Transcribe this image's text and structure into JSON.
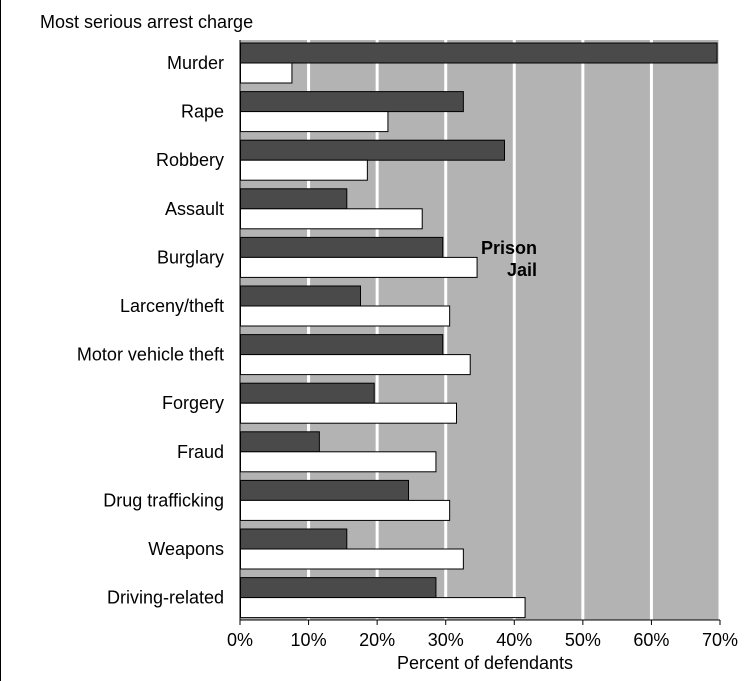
{
  "chart_data": {
    "type": "bar",
    "orientation": "horizontal",
    "title": "Most serious arrest charge",
    "xlabel": "Percent of defendants",
    "ylabel": "",
    "xlim": [
      0,
      70
    ],
    "x_ticks": [
      "0%",
      "10%",
      "20%",
      "30%",
      "40%",
      "50%",
      "60%",
      "70%"
    ],
    "grid": true,
    "categories": [
      "Murder",
      "Rape",
      "Robbery",
      "Assault",
      "Burglary",
      "Larceny/theft",
      "Motor vehicle theft",
      "Forgery",
      "Fraud",
      "Drug trafficking",
      "Weapons",
      "Driving-related"
    ],
    "series": [
      {
        "name": "Prison",
        "color": "#4a4a4a",
        "values": [
          69.5,
          32.5,
          38.5,
          15.5,
          29.5,
          17.5,
          29.5,
          19.5,
          11.5,
          24.5,
          15.5,
          28.5
        ]
      },
      {
        "name": "Jail",
        "color": "#ffffff",
        "values": [
          7.5,
          21.5,
          18.5,
          26.5,
          34.5,
          30.5,
          33.5,
          31.5,
          28.5,
          30.5,
          32.5,
          41.5
        ]
      }
    ],
    "legend_placement": "inside-center",
    "colors": {
      "plot_background": "#b3b3b3",
      "gridline": "#ffffff"
    }
  }
}
